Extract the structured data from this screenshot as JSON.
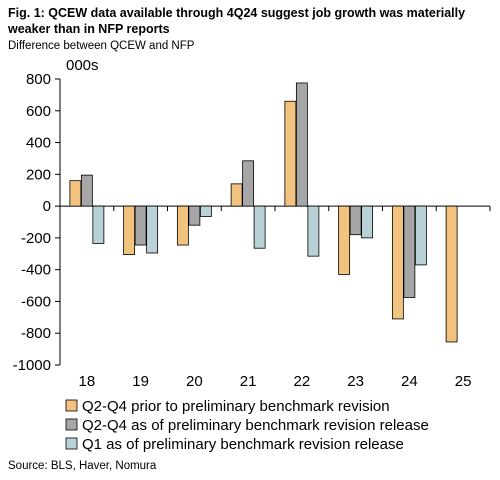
{
  "header": {
    "title": "Fig. 1: QCEW data available through 4Q24 suggest job growth was materially weaker than in NFP reports",
    "subtitle": "Difference between QCEW and NFP"
  },
  "footer": {
    "source": "Source: BLS, Haver, Nomura"
  },
  "chart_data": {
    "type": "bar",
    "title": "",
    "units_label": "000s",
    "categories": [
      "18",
      "19",
      "20",
      "21",
      "22",
      "23",
      "24",
      "25"
    ],
    "ylim": [
      -1000,
      800
    ],
    "yticks": [
      800,
      600,
      400,
      200,
      0,
      -200,
      -400,
      -600,
      -800,
      -1000
    ],
    "grid": false,
    "legend_position": "bottom-left",
    "series": [
      {
        "name": "Q2-Q4 prior to preliminary benchmark revision",
        "color": "#F2C27F",
        "values": [
          160,
          -305,
          -245,
          140,
          660,
          -430,
          -710,
          -855
        ]
      },
      {
        "name": "Q2-Q4 as of preliminary benchmark revision release",
        "color": "#A6A6A6",
        "values": [
          195,
          -245,
          -120,
          285,
          775,
          -180,
          -575,
          null
        ]
      },
      {
        "name": "Q1 as of preliminary benchmark revision release",
        "color": "#B8D2D8",
        "values": [
          -235,
          -295,
          -65,
          -265,
          -315,
          -200,
          -370,
          null
        ]
      }
    ]
  }
}
